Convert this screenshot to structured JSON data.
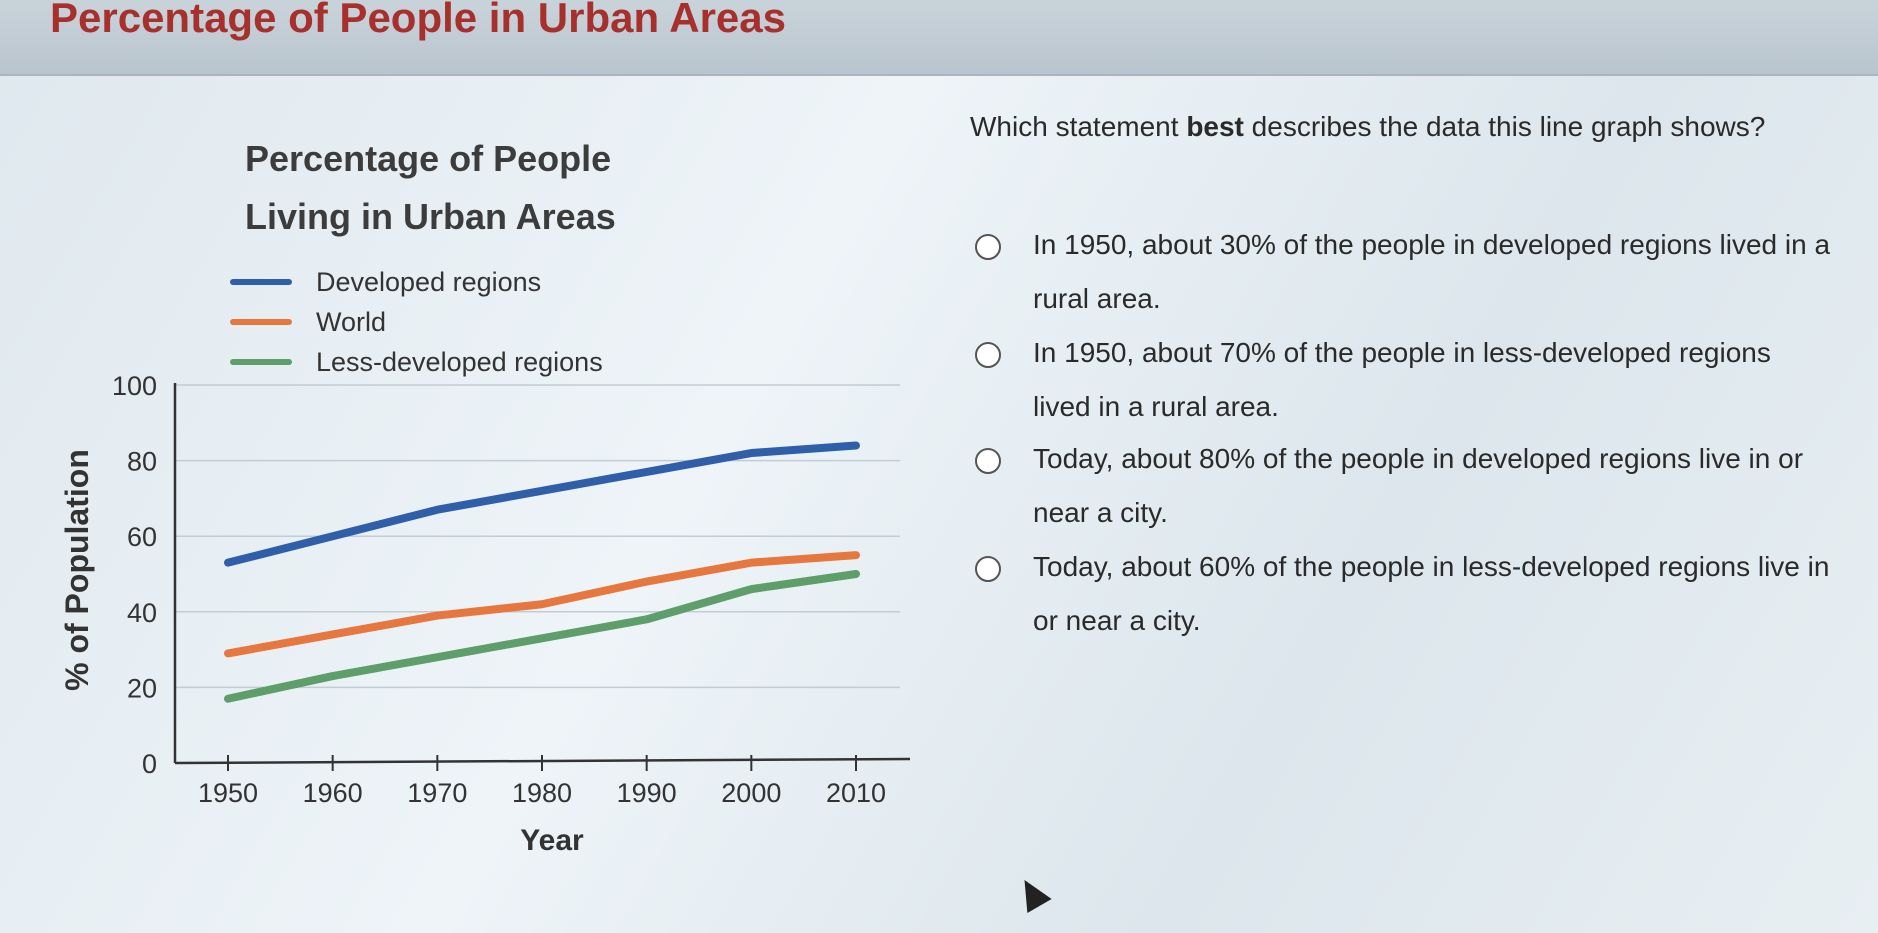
{
  "header": {
    "title": "Percentage of People in Urban Areas"
  },
  "question": {
    "prefix": "Which statement ",
    "bold": "best",
    "suffix": " describes the data this line graph shows?"
  },
  "options": [
    {
      "label": "In 1950, about 30% of the people in developed regions lived in a rural area."
    },
    {
      "label": "In 1950, about 70% of the people in less-developed regions lived in a rural area."
    },
    {
      "label": "Today, about 80% of the people in developed regions live in or near a city."
    },
    {
      "label": "Today, about 60% of the people in less-developed regions live in or near a city."
    }
  ],
  "chart_data": {
    "type": "line",
    "title": "Percentage of People Living in Urban Areas",
    "xlabel": "Year",
    "ylabel": "% of Population",
    "x": [
      1950,
      1960,
      1970,
      1980,
      1990,
      2000,
      2010
    ],
    "xlim": [
      1950,
      2010
    ],
    "ylim": [
      0,
      100
    ],
    "yticks": [
      0,
      20,
      40,
      60,
      80,
      100
    ],
    "grid": true,
    "legend": "top-left",
    "series": [
      {
        "name": "Developed regions",
        "color": "#2f5fa8",
        "values": [
          53,
          60,
          67,
          72,
          77,
          82,
          84
        ]
      },
      {
        "name": "World",
        "color": "#e6773f",
        "values": [
          29,
          34,
          39,
          42,
          48,
          53,
          55
        ]
      },
      {
        "name": "Less-developed regions",
        "color": "#5e9e6a",
        "values": [
          17,
          23,
          28,
          33,
          38,
          46,
          50
        ]
      }
    ]
  }
}
